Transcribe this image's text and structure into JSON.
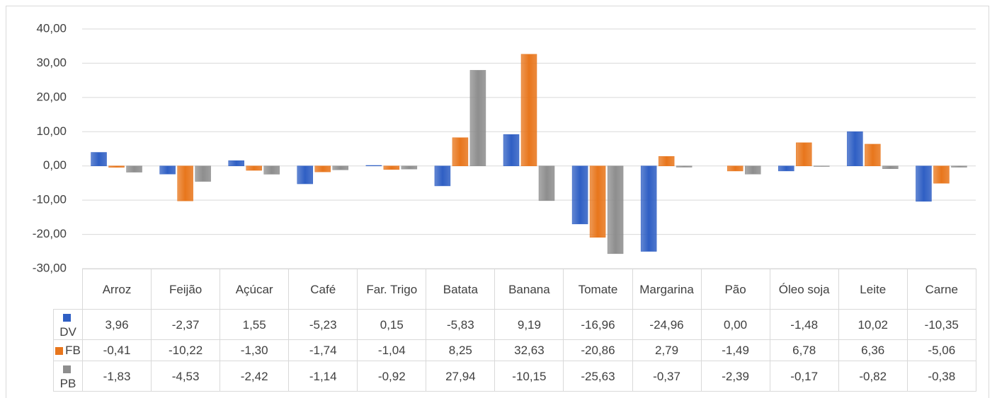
{
  "chart_data": {
    "type": "bar",
    "categories": [
      "Arroz",
      "Feijão",
      "Açúcar",
      "Café",
      "Far. Trigo",
      "Batata",
      "Banana",
      "Tomate",
      "Margarina",
      "Pão",
      "Óleo soja",
      "Leite",
      "Carne"
    ],
    "series": [
      {
        "name": "DV",
        "color": "#2f5fc4",
        "values": [
          3.96,
          -2.37,
          1.55,
          -5.23,
          0.15,
          -5.83,
          9.19,
          -16.96,
          -24.96,
          0.0,
          -1.48,
          10.02,
          -10.35
        ],
        "value_labels": [
          "3,96",
          "-2,37",
          "1,55",
          "-5,23",
          "0,15",
          "-5,83",
          "9,19",
          "-16,96",
          "-24,96",
          "0,00",
          "-1,48",
          "10,02",
          "-10,35"
        ]
      },
      {
        "name": "FB",
        "color": "#e8761c",
        "values": [
          -0.41,
          -10.22,
          -1.3,
          -1.74,
          -1.04,
          8.25,
          32.63,
          -20.86,
          2.79,
          -1.49,
          6.78,
          6.36,
          -5.06
        ],
        "value_labels": [
          "-0,41",
          "-10,22",
          "-1,30",
          "-1,74",
          "-1,04",
          "8,25",
          "32,63",
          "-20,86",
          "2,79",
          "-1,49",
          "6,78",
          "6,36",
          "-5,06"
        ]
      },
      {
        "name": "PB",
        "color": "#8e8e8e",
        "values": [
          -1.83,
          -4.53,
          -2.42,
          -1.14,
          -0.92,
          27.94,
          -10.15,
          -25.63,
          -0.37,
          -2.39,
          -0.17,
          -0.82,
          -0.38
        ],
        "value_labels": [
          "-1,83",
          "-4,53",
          "-2,42",
          "-1,14",
          "-0,92",
          "27,94",
          "-10,15",
          "-25,63",
          "-0,37",
          "-2,39",
          "-0,17",
          "-0,82",
          "-0,38"
        ]
      }
    ],
    "ylim": [
      -30,
      40
    ],
    "yticks": [
      {
        "value": 40,
        "label": "40,00"
      },
      {
        "value": 30,
        "label": "30,00"
      },
      {
        "value": 20,
        "label": "20,00"
      },
      {
        "value": 10,
        "label": "10,00"
      },
      {
        "value": 0,
        "label": "0,00"
      },
      {
        "value": -10,
        "label": "-10,00"
      },
      {
        "value": -20,
        "label": "-20,00"
      },
      {
        "value": -30,
        "label": "-30,00"
      }
    ],
    "grid": true
  }
}
